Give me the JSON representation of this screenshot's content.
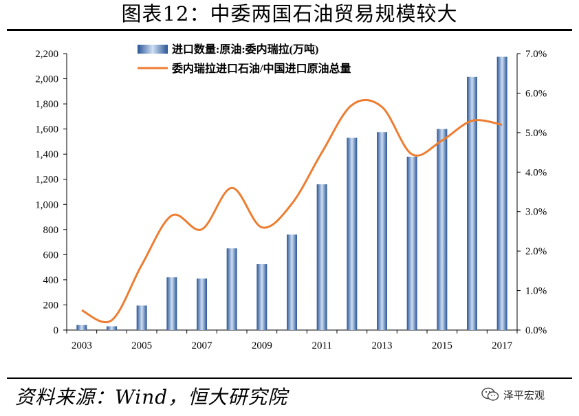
{
  "title": "图表12：中委两国石油贸易规模较大",
  "source": "资料来源：Wind，恒大研究院",
  "brand": {
    "name": "泽平宏观",
    "icon": "wechat-icon"
  },
  "colors": {
    "bar": "#4a7fc1",
    "bar_dark": "#2a5595",
    "bar_light": "#cfdff3",
    "line": "#ed7d31"
  },
  "chart_data": {
    "type": "bar",
    "title": "",
    "xlabel": "",
    "ylabel": "",
    "categories": [
      "2003",
      "2004",
      "2005",
      "2006",
      "2007",
      "2008",
      "2009",
      "2010",
      "2011",
      "2012",
      "2013",
      "2014",
      "2015",
      "2016",
      "2017"
    ],
    "x_tick_labels": [
      "2003",
      "2005",
      "2007",
      "2009",
      "2011",
      "2013",
      "2015",
      "2017"
    ],
    "series": [
      {
        "name": "进口数量:原油:委内瑞拉(万吨)",
        "type": "bar",
        "axis": "left",
        "values": [
          40,
          30,
          195,
          420,
          410,
          650,
          525,
          760,
          1160,
          1530,
          1575,
          1380,
          1600,
          2015,
          2175
        ]
      },
      {
        "name": "委内瑞拉进口石油/中国进口原油总量",
        "type": "line",
        "axis": "right",
        "values": [
          0.5,
          0.25,
          1.65,
          2.9,
          2.55,
          3.6,
          2.6,
          3.2,
          4.5,
          5.7,
          5.65,
          4.45,
          4.8,
          5.3,
          5.2
        ]
      }
    ],
    "y_left": {
      "ylim": [
        0,
        2200
      ],
      "ticks": [
        0,
        200,
        400,
        600,
        800,
        1000,
        1200,
        1400,
        1600,
        1800,
        2000,
        2200
      ],
      "tick_labels": [
        "0",
        "200",
        "400",
        "600",
        "800",
        "1,000",
        "1,200",
        "1,400",
        "1,600",
        "1,800",
        "2,000",
        "2,200"
      ]
    },
    "y_right": {
      "ylim": [
        0,
        7
      ],
      "ticks": [
        0,
        1,
        2,
        3,
        4,
        5,
        6,
        7
      ],
      "tick_labels": [
        "0.0%",
        "1.0%",
        "2.0%",
        "3.0%",
        "4.0%",
        "5.0%",
        "6.0%",
        "7.0%"
      ]
    },
    "legend_position": "top-center",
    "grid": false
  }
}
